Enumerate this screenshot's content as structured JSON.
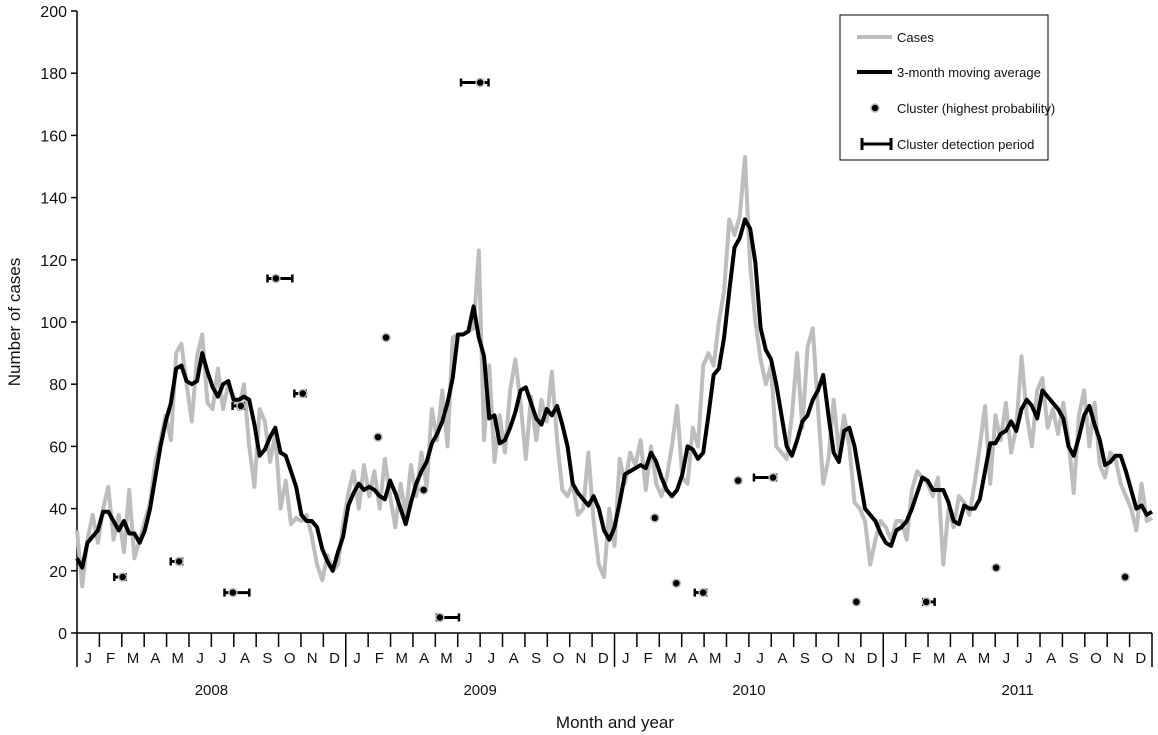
{
  "chart_data": {
    "type": "line",
    "xlabel": "Month and year",
    "ylabel": "Number of cases",
    "ylim": [
      0,
      200
    ],
    "yticks": [
      0,
      20,
      40,
      60,
      80,
      100,
      120,
      140,
      160,
      180,
      200
    ],
    "x_range": [
      2008.0,
      2012.0
    ],
    "month_labels": [
      "J",
      "F",
      "M",
      "A",
      "M",
      "J",
      "J",
      "A",
      "S",
      "O",
      "N",
      "D"
    ],
    "year_labels": [
      "2008",
      "2009",
      "2010",
      "2011"
    ],
    "grid": false,
    "legend_position": "top-right",
    "sampling": "weekly",
    "series": [
      {
        "name": "Cases",
        "color": "#bdbdbd",
        "values": [
          33,
          15,
          30,
          38,
          29,
          40,
          47,
          30,
          38,
          26,
          46,
          24,
          30,
          36,
          42,
          55,
          62,
          70,
          62,
          90,
          93,
          80,
          68,
          89,
          96,
          74,
          72,
          85,
          72,
          80,
          76,
          72,
          80,
          60,
          47,
          72,
          68,
          55,
          64,
          40,
          49,
          35,
          37,
          36,
          38,
          31,
          22,
          17,
          25,
          20,
          22,
          35,
          45,
          52,
          40,
          54,
          44,
          52,
          40,
          56,
          44,
          34,
          48,
          38,
          54,
          44,
          58,
          47,
          72,
          62,
          78,
          60,
          95,
          96,
          96,
          97,
          98,
          123,
          62,
          86,
          55,
          70,
          58,
          78,
          88,
          74,
          56,
          76,
          62,
          75,
          68,
          84,
          62,
          46,
          44,
          48,
          38,
          40,
          58,
          36,
          22,
          18,
          40,
          28,
          56,
          48,
          58,
          54,
          62,
          46,
          60,
          48,
          44,
          50,
          60,
          73,
          50,
          48,
          66,
          60,
          86,
          90,
          86,
          100,
          110,
          133,
          128,
          134,
          153,
          118,
          100,
          88,
          80,
          86,
          60,
          58,
          56,
          70,
          90,
          66,
          92,
          98,
          72,
          48,
          56,
          75,
          58,
          70,
          60,
          42,
          40,
          36,
          22,
          30,
          36,
          34,
          30,
          36,
          36,
          30,
          46,
          52,
          50,
          48,
          44,
          50,
          22,
          40,
          34,
          44,
          42,
          38,
          48,
          60,
          73,
          48,
          70,
          62,
          74,
          58,
          66,
          89,
          70,
          60,
          78,
          82,
          66,
          72,
          64,
          74,
          62,
          45,
          70,
          78,
          60,
          74,
          54,
          50,
          58,
          56,
          48,
          44,
          40,
          33,
          48,
          36,
          37
        ]
      },
      {
        "name": "3-month moving average",
        "color": "#000000",
        "values": [
          24,
          21,
          29,
          31,
          33,
          39,
          39,
          36,
          33,
          36,
          32,
          32,
          29,
          33,
          40,
          50,
          60,
          68,
          74,
          85,
          86,
          81,
          80,
          81,
          90,
          84,
          79,
          76,
          80,
          81,
          75,
          75,
          76,
          75,
          67,
          57,
          59,
          63,
          66,
          58,
          57,
          52,
          47,
          38,
          36,
          36,
          34,
          27,
          23,
          20,
          26,
          31,
          41,
          45,
          48,
          46,
          47,
          46,
          44,
          43,
          49,
          45,
          40,
          35,
          42,
          48,
          52,
          55,
          61,
          64,
          68,
          74,
          82,
          96,
          96,
          97,
          105,
          95,
          89,
          69,
          70,
          61,
          62,
          66,
          71,
          78,
          79,
          74,
          69,
          67,
          72,
          70,
          73,
          67,
          60,
          48,
          45,
          43,
          41,
          44,
          40,
          33,
          30,
          34,
          42,
          51,
          52,
          53,
          54,
          53,
          58,
          55,
          50,
          46,
          44,
          46,
          51,
          60,
          59,
          56,
          58,
          70,
          83,
          85,
          95,
          110,
          124,
          127,
          133,
          130,
          119,
          98,
          91,
          88,
          80,
          70,
          60,
          57,
          62,
          68,
          70,
          75,
          78,
          83,
          70,
          58,
          55,
          65,
          66,
          60,
          50,
          40,
          38,
          36,
          32,
          29,
          28,
          33,
          34,
          36,
          40,
          45,
          50,
          49,
          46,
          46,
          46,
          42,
          36,
          35,
          41,
          40,
          40,
          43,
          52,
          61,
          61,
          64,
          65,
          68,
          65,
          72,
          75,
          73,
          69,
          78,
          76,
          74,
          72,
          69,
          60,
          57,
          63,
          70,
          73,
          67,
          62,
          54,
          55,
          57,
          57,
          52,
          46,
          40,
          41,
          38,
          39
        ]
      },
      {
        "name": "Cluster (highest probability)",
        "type": "scatter",
        "points": [
          {
            "x": 2008.17,
            "y": 18,
            "period": [
              2008.15,
              2008.17
            ]
          },
          {
            "x": 2008.38,
            "y": 23,
            "period": [
              2008.36,
              2008.38
            ]
          },
          {
            "x": 2008.58,
            "y": 13,
            "period": [
              2008.56,
              2008.63
            ]
          },
          {
            "x": 2008.61,
            "y": 73,
            "period": [
              2008.59,
              2008.61
            ]
          },
          {
            "x": 2008.74,
            "y": 114,
            "period": [
              2008.72,
              2008.79
            ]
          },
          {
            "x": 2008.84,
            "y": 77,
            "period": [
              2008.82,
              2008.84
            ]
          },
          {
            "x": 2009.12,
            "y": 63
          },
          {
            "x": 2009.15,
            "y": 95
          },
          {
            "x": 2009.29,
            "y": 46
          },
          {
            "x": 2009.35,
            "y": 5,
            "period": [
              2009.35,
              2009.41
            ]
          },
          {
            "x": 2009.5,
            "y": 177,
            "period": [
              2009.44,
              2009.52
            ]
          },
          {
            "x": 2010.15,
            "y": 37
          },
          {
            "x": 2010.23,
            "y": 16
          },
          {
            "x": 2010.33,
            "y": 13,
            "period": [
              2010.31,
              2010.33
            ]
          },
          {
            "x": 2010.46,
            "y": 49
          },
          {
            "x": 2010.59,
            "y": 50,
            "period": [
              2010.53,
              2010.59
            ]
          },
          {
            "x": 2010.9,
            "y": 10
          },
          {
            "x": 2011.16,
            "y": 10,
            "period": [
              2011.16,
              2011.18
            ]
          },
          {
            "x": 2011.42,
            "y": 21
          },
          {
            "x": 2011.9,
            "y": 18
          }
        ]
      },
      {
        "name": "Cluster detection period",
        "type": "interval"
      }
    ]
  }
}
